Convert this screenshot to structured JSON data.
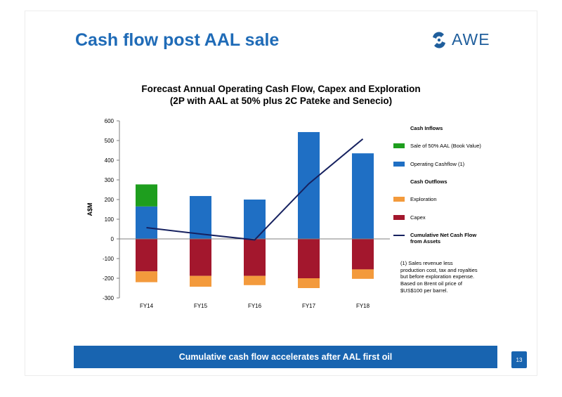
{
  "slide": {
    "title": "Cash flow post AAL sale",
    "logo_text": "AWE",
    "banner": "Cumulative cash flow accelerates after AAL first oil",
    "page_number": "13"
  },
  "chart_data": {
    "type": "bar",
    "title": "Forecast Annual Operating Cash Flow, Capex and Exploration",
    "subtitle": "(2P with AAL at 50% plus 2C Pateke and Senecio)",
    "ylabel": "A$M",
    "xlabel": "",
    "ylim": [
      -300,
      600
    ],
    "yticks": [
      -300,
      -200,
      -100,
      0,
      100,
      200,
      300,
      400,
      500,
      600
    ],
    "categories": [
      "FY14",
      "FY15",
      "FY16",
      "FY17",
      "FY18"
    ],
    "stacked": true,
    "grid": false,
    "legend_position": "right",
    "series": [
      {
        "name": "Operating Cashflow (1)",
        "kind": "bar",
        "color": "#1f6fc4",
        "values": [
          165,
          218,
          200,
          543,
          435
        ]
      },
      {
        "name": "Sale of 50% AAL (Book Value)",
        "kind": "bar",
        "color": "#1e9e1e",
        "values": [
          112,
          0,
          0,
          0,
          0
        ]
      },
      {
        "name": "Capex",
        "kind": "bar",
        "color": "#a3172d",
        "values": [
          -165,
          -188,
          -188,
          -200,
          -155
        ]
      },
      {
        "name": "Exploration",
        "kind": "bar",
        "color": "#f39a3c",
        "values": [
          -55,
          -55,
          -47,
          -50,
          -48
        ]
      },
      {
        "name": "Cumulative Net Cash Flow from Assets",
        "kind": "line",
        "color": "#16215f",
        "values": [
          57,
          25,
          -5,
          280,
          508
        ]
      }
    ],
    "legend": {
      "inflows_heading": "Cash Inflows",
      "outflows_heading": "Cash Outflows",
      "items": [
        {
          "label": "Sale of 50% AAL (Book Value)",
          "color": "#1e9e1e"
        },
        {
          "label": "Operating Cashflow (1)",
          "color": "#1f6fc4"
        },
        {
          "label": "Exploration",
          "color": "#f39a3c"
        },
        {
          "label": "Capex",
          "color": "#a3172d"
        }
      ],
      "line_label_1": "Cumulative Net Cash Flow",
      "line_label_2": "from Assets",
      "line_color": "#16215f"
    },
    "footnote": "(1) Sales revenue less production cost, tax and royalties but before exploration expense. Based on Brent oil price of $US$100 per barrel."
  }
}
